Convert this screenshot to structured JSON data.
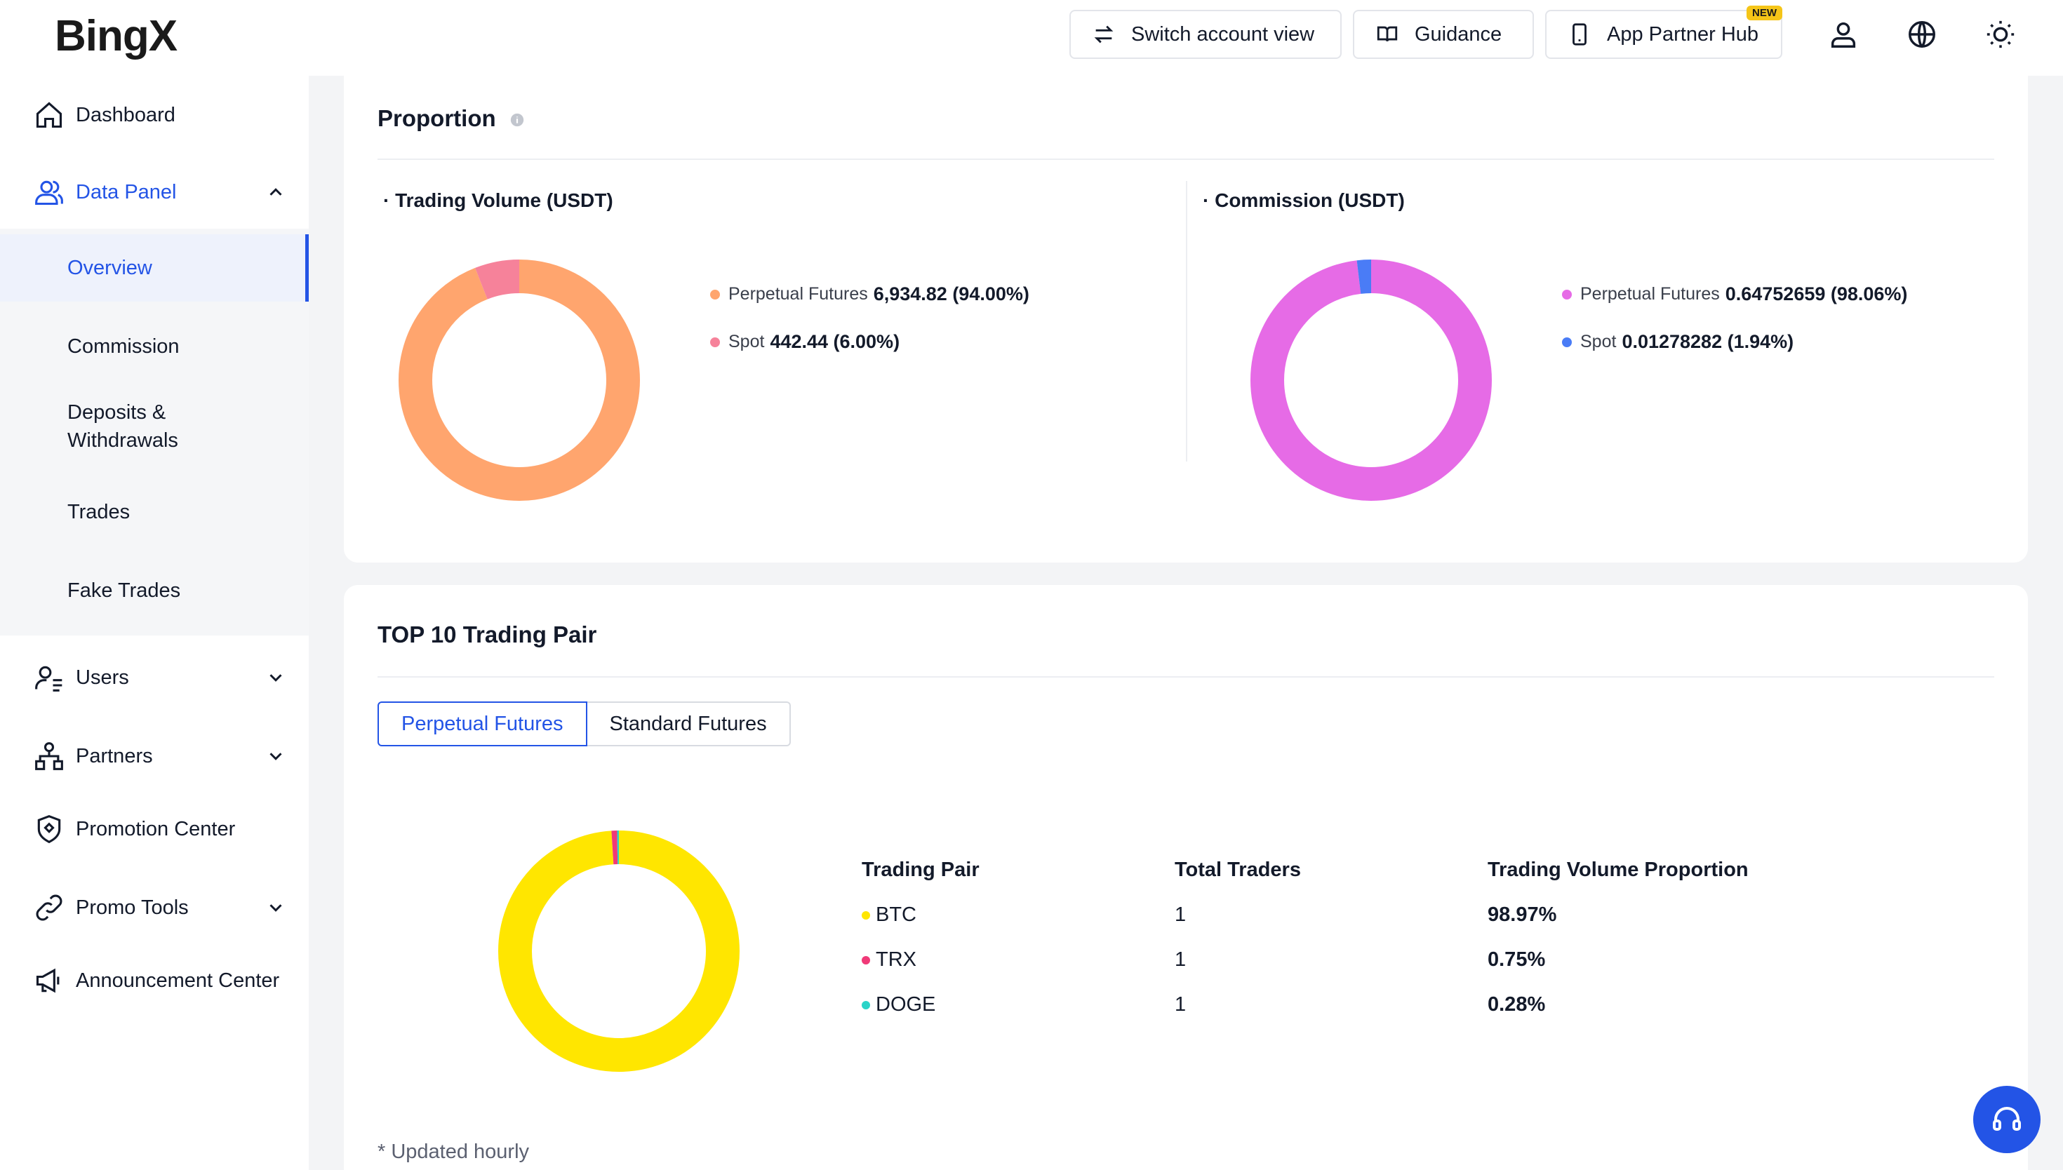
{
  "header": {
    "logo": "BingX",
    "switch_label": "Switch account view",
    "guidance_label": "Guidance",
    "partner_hub_label": "App Partner Hub",
    "new_badge": "NEW",
    "icons": [
      "user-icon",
      "globe-icon",
      "sun-icon"
    ]
  },
  "sidebar": {
    "items": [
      {
        "label": "Dashboard",
        "icon": "home-icon"
      },
      {
        "label": "Data Panel",
        "icon": "users-icon",
        "expanded": true
      },
      {
        "label": "Users",
        "icon": "user-list-icon"
      },
      {
        "label": "Partners",
        "icon": "org-chart-icon"
      },
      {
        "label": "Promotion Center",
        "icon": "shield-icon"
      },
      {
        "label": "Promo Tools",
        "icon": "link-icon"
      },
      {
        "label": "Announcement Center",
        "icon": "megaphone-icon"
      }
    ],
    "sub_items": [
      {
        "label": "Overview",
        "active": true
      },
      {
        "label": "Commission"
      },
      {
        "label": "Deposits &",
        "label2": "Withdrawals"
      },
      {
        "label": "Trades"
      },
      {
        "label": "Fake Trades"
      }
    ]
  },
  "proportion": {
    "title": "Proportion",
    "volume": {
      "title": "· Trading Volume (USDT)",
      "items": [
        {
          "name": "Perpetual Futures",
          "value": "6,934.82 (94.00%)",
          "color": "#ffa56e"
        },
        {
          "name": "Spot",
          "value": "442.44 (6.00%)",
          "color": "#f6829a"
        }
      ]
    },
    "commission": {
      "title": "· Commission (USDT)",
      "items": [
        {
          "name": "Perpetual Futures",
          "value": "0.64752659 (98.06%)",
          "color": "#e66be6"
        },
        {
          "name": "Spot",
          "value": "0.01278282 (1.94%)",
          "color": "#4a7cf6"
        }
      ]
    }
  },
  "top10": {
    "title": "TOP 10 Trading Pair",
    "tabs": [
      "Perpetual Futures",
      "Standard Futures"
    ],
    "columns": [
      "Trading Pair",
      "Total Traders",
      "Trading Volume Proportion"
    ],
    "rows": [
      {
        "pair": "BTC",
        "traders": "1",
        "proportion": "98.97%",
        "color": "#ffe600"
      },
      {
        "pair": "TRX",
        "traders": "1",
        "proportion": "0.75%",
        "color": "#f03a78"
      },
      {
        "pair": "DOGE",
        "traders": "1",
        "proportion": "0.28%",
        "color": "#2ad4c8"
      }
    ],
    "note": "* Updated hourly"
  },
  "chart_data": [
    {
      "type": "pie",
      "categories": [
        "Perpetual Futures",
        "Spot"
      ],
      "values": [
        94.0,
        6.0
      ],
      "colors": [
        "#ffa56e",
        "#f6829a"
      ]
    },
    {
      "type": "pie",
      "categories": [
        "Perpetual Futures",
        "Spot"
      ],
      "values": [
        98.06,
        1.94
      ],
      "colors": [
        "#e66be6",
        "#4a7cf6"
      ]
    },
    {
      "type": "pie",
      "categories": [
        "BTC",
        "TRX",
        "DOGE"
      ],
      "values": [
        98.97,
        0.75,
        0.28
      ],
      "colors": [
        "#ffe600",
        "#f03a78",
        "#2ad4c8"
      ]
    }
  ]
}
